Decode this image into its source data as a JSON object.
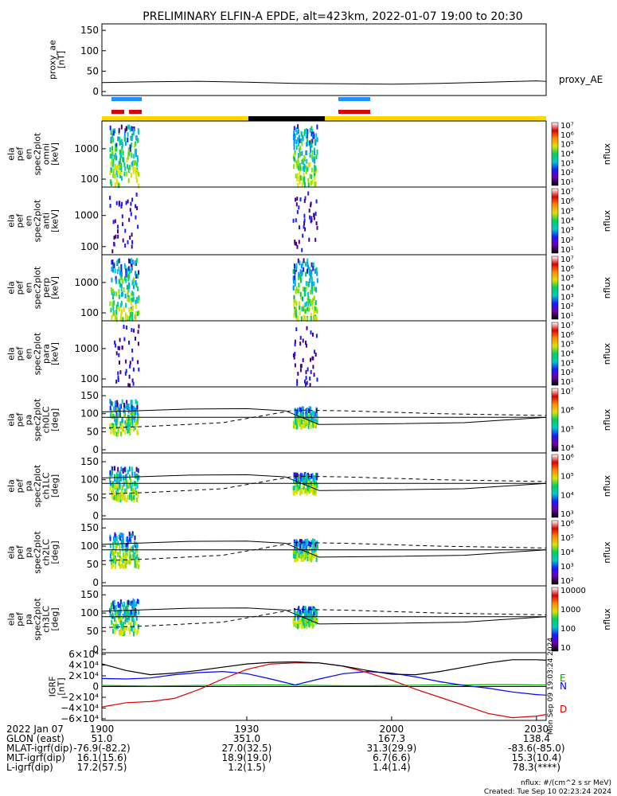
{
  "title": "PRELIMINARY ELFIN-A EPDE, alt=423km, 2022-01-07 19:00 to 20:30",
  "colors": {
    "spec": [
      "#4b0082",
      "#1a1aff",
      "#0099ff",
      "#00c8c8",
      "#00d060",
      "#88e000",
      "#e0e000"
    ],
    "igrf_E": "#00aa00",
    "igrf_N": "#0000ff",
    "igrf_D": "#dd0000",
    "blue_bar": "#1e90ff",
    "red_bar": "#dd0000",
    "yellow_bar": "#ffd700"
  },
  "panels": {
    "proxy_ae": {
      "ylabel": "proxy_ae\n[nT]",
      "legend": "proxy_AE",
      "yticks": [
        "150",
        "100",
        "50",
        "0"
      ]
    },
    "spec_omni": {
      "ylabel": "ela\npef\nen\nspec2plot\nomni\n[keV]",
      "yticks": [
        "1000",
        "100"
      ],
      "cbar_label": "nflux"
    },
    "spec_anti": {
      "ylabel": "ela\npef\nen\nspec2plot\nanti\n[keV]",
      "yticks": [
        "1000",
        "100"
      ],
      "cbar_label": "nflux"
    },
    "spec_perp": {
      "ylabel": "ela\npef\nen\nspec2plot\nperp\n[keV]",
      "yticks": [
        "1000",
        "100"
      ],
      "cbar_label": "nflux"
    },
    "spec_para": {
      "ylabel": "ela\npef\nen\nspec2plot\npara\n[keV]",
      "yticks": [
        "1000",
        "100"
      ],
      "cbar_label": "nflux"
    },
    "pa_ch0": {
      "ylabel": "ela\npef\npa\nspec2plot\nch0LC\n[deg]",
      "yticks": [
        "150",
        "100",
        "50",
        "0"
      ],
      "cbar_label": "nflux"
    },
    "pa_ch1": {
      "ylabel": "ela\npef\npa\nspec2plot\nch1LC\n[deg]",
      "yticks": [
        "150",
        "100",
        "50",
        "0"
      ],
      "cbar_label": "nflux"
    },
    "pa_ch2": {
      "ylabel": "ela\npef\npa\nspec2plot\nch2LC\n[deg]",
      "yticks": [
        "150",
        "100",
        "50",
        "0"
      ],
      "cbar_label": "nflux"
    },
    "pa_ch3": {
      "ylabel": "ela\npef\npa\nspec2plot\nch3LC\n[deg]",
      "yticks": [
        "150",
        "100",
        "50",
        "0"
      ],
      "cbar_label": "nflux"
    },
    "igrf": {
      "ylabel": "IGRF\n[nT]",
      "legend": [
        "E",
        "N",
        "D"
      ],
      "yticks": [
        "6×10⁴",
        "4×10⁴",
        "2×10⁴",
        "0",
        "−2×10⁴",
        "−4×10⁴",
        "−6×10⁴"
      ],
      "side_text": "Mon Sep 09 19:03:24 2024"
    }
  },
  "colorbars": [
    [
      "10⁷",
      "10⁶",
      "10⁵",
      "10⁴",
      "10³",
      "10²",
      "10¹"
    ],
    [
      "10⁷",
      "10⁶",
      "10⁵",
      "10⁴",
      "10³",
      "10²",
      "10¹"
    ],
    [
      "10⁷",
      "10⁶",
      "10⁵",
      "10⁴",
      "10³",
      "10²",
      "10¹"
    ],
    [
      "10⁷",
      "10⁶",
      "10⁵",
      "10⁴",
      "10³",
      "10²",
      "10¹"
    ],
    [
      "10⁷",
      "10⁶",
      "10⁵",
      "10⁴"
    ],
    [
      "10⁶",
      "10⁵",
      "10⁴",
      "10³"
    ],
    [
      "10⁶",
      "10⁵",
      "10⁴",
      "10³",
      "10²"
    ],
    [
      "10000",
      "1000",
      "100",
      "10"
    ]
  ],
  "chart_data": {
    "type": "line",
    "title": "PRELIMINARY ELFIN-A EPDE, alt=423km, 2022-01-07 19:00 to 20:30",
    "x_ticks": [
      "1900",
      "1930",
      "2000",
      "2030"
    ],
    "x_range_minutes": [
      0,
      92
    ],
    "science_intervals_minutes": [
      [
        1.5,
        7.5
      ],
      [
        39.5,
        44.5
      ]
    ],
    "proxy_ae": {
      "ylim": [
        0,
        160
      ],
      "x": [
        0,
        10,
        20,
        30,
        40,
        50,
        60,
        70,
        80,
        90,
        92
      ],
      "values": [
        22,
        24,
        25,
        23,
        20,
        19,
        18,
        20,
        23,
        26,
        25
      ]
    },
    "igrf": {
      "ylim": [
        -60000,
        60000
      ],
      "x": [
        0,
        5,
        10,
        15,
        20,
        25,
        30,
        35,
        40,
        45,
        50,
        55,
        60,
        65,
        70,
        75,
        80,
        85,
        90,
        92
      ],
      "series": [
        {
          "name": "E",
          "values": [
            2000,
            1500,
            1000,
            1500,
            2000,
            2500,
            3000,
            3000,
            2500,
            2000,
            1500,
            1500,
            2000,
            2500,
            3000,
            3000,
            3500,
            3500,
            3000,
            3000
          ]
        },
        {
          "name": "N",
          "values": [
            15000,
            14000,
            16000,
            22000,
            26000,
            28000,
            24000,
            14000,
            3000,
            14000,
            24000,
            28000,
            25000,
            18000,
            9000,
            2000,
            -3000,
            -10000,
            -15000,
            -16000
          ]
        },
        {
          "name": "D",
          "values": [
            -38000,
            -30000,
            -28000,
            -22000,
            -6000,
            14000,
            32000,
            42000,
            44000,
            44000,
            38000,
            26000,
            12000,
            -5000,
            -20000,
            -35000,
            -50000,
            -58000,
            -55000,
            -52000
          ]
        },
        {
          "name": "",
          "values": [
            42000,
            30000,
            22000,
            25000,
            30000,
            36000,
            42000,
            45000,
            46000,
            44000,
            38000,
            30000,
            23000,
            22000,
            28000,
            36000,
            44000,
            50000,
            50000,
            49000
          ]
        }
      ]
    }
  },
  "footer": {
    "rows": [
      [
        "2022 Jan 07",
        "1900",
        "1930",
        "2000",
        "2030"
      ],
      [
        "GLON (east)",
        "51.0",
        "351.0",
        "167.3",
        "138.4"
      ],
      [
        "MLAT-igrf(dip)",
        "-76.9(-82.2)",
        "27.0(32.5)",
        "31.3(29.9)",
        "-83.6(-85.0)"
      ],
      [
        "MLT-igrf(dip)",
        "16.1(15.6)",
        "18.9(19.0)",
        "6.7(6.6)",
        "15.3(10.4)"
      ],
      [
        "L-igrf(dip)",
        "17.2(57.5)",
        "1.2(1.5)",
        "1.4(1.4)",
        "78.3(****)"
      ]
    ],
    "units_note": "nflux: #/(cm^2 s sr MeV)",
    "created": "Created: Tue Sep 10 02:23:24 2024"
  }
}
